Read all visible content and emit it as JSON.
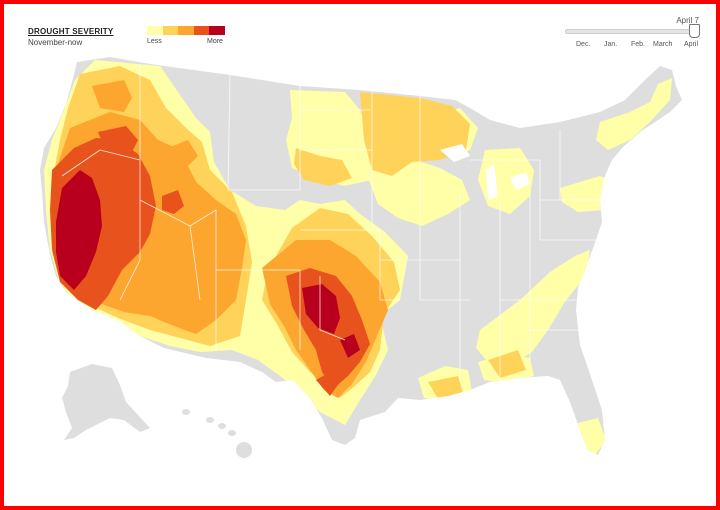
{
  "legend": {
    "title": "DROUGHT SEVERITY",
    "subtitle": "November-now",
    "less_label": "Less",
    "more_label": "More",
    "scale_colors": [
      "#ffffa8",
      "#ffd25a",
      "#fca52f",
      "#e8531d",
      "#b8001e"
    ]
  },
  "timeline": {
    "current_date": "April 7",
    "months": [
      "Dec.",
      "Jan.",
      "Feb.",
      "March",
      "April"
    ],
    "selected_fraction": 1.0
  },
  "colors": {
    "frame_border": "#ff0000",
    "land": "#dedede",
    "state_border": "#ffffff",
    "d0": "#ffffa8",
    "d1": "#ffd25a",
    "d2": "#fca52f",
    "d3": "#e8531d",
    "d4": "#b8001e"
  }
}
